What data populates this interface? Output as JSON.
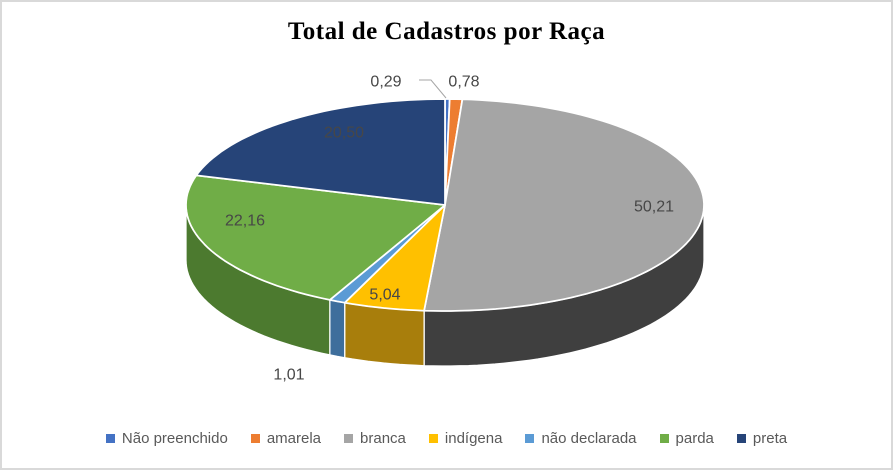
{
  "chart_data": {
    "type": "pie",
    "effect": "3d",
    "title": "Total de Cadastros por Raça",
    "value_format": "decimal-comma-percent-of-total",
    "legend_position": "bottom",
    "slices": [
      {
        "label": "Não preenchido",
        "value": 0.29,
        "display_value": "0,29",
        "color": "#4472C4",
        "side_color": "#2E5494",
        "label_placement": "outside"
      },
      {
        "label": "amarela",
        "value": 0.78,
        "display_value": "0,78",
        "color": "#ED7D31",
        "side_color": "#B65D1E",
        "label_placement": "outside"
      },
      {
        "label": "branca",
        "value": 50.21,
        "display_value": "50,21",
        "color": "#A5A5A5",
        "side_color": "#3F3F3F",
        "label_placement": "inside"
      },
      {
        "label": "indígena",
        "value": 5.04,
        "display_value": "5,04",
        "color": "#FFC000",
        "side_color": "#A87E0C",
        "label_placement": "inside"
      },
      {
        "label": "não declarada",
        "value": 1.01,
        "display_value": "1,01",
        "color": "#5B9BD5",
        "side_color": "#3E6E9C",
        "label_placement": "outside"
      },
      {
        "label": "parda",
        "value": 22.16,
        "display_value": "22,16",
        "color": "#70AD47",
        "side_color": "#4C7A2F",
        "label_placement": "inside"
      },
      {
        "label": "preta",
        "value": 20.5,
        "display_value": "20,50",
        "color": "#264478",
        "side_color": "#1A3055",
        "label_placement": "inside"
      }
    ],
    "style": {
      "data_label_color": "#474747",
      "legend_text_color": "#595959",
      "title_color": "#000000",
      "slice_border_color": "#FFFFFF",
      "leader_line_color": "#A6A6A6",
      "frame_border_color": "#D9D9D9",
      "background": "#FFFFFF"
    }
  }
}
